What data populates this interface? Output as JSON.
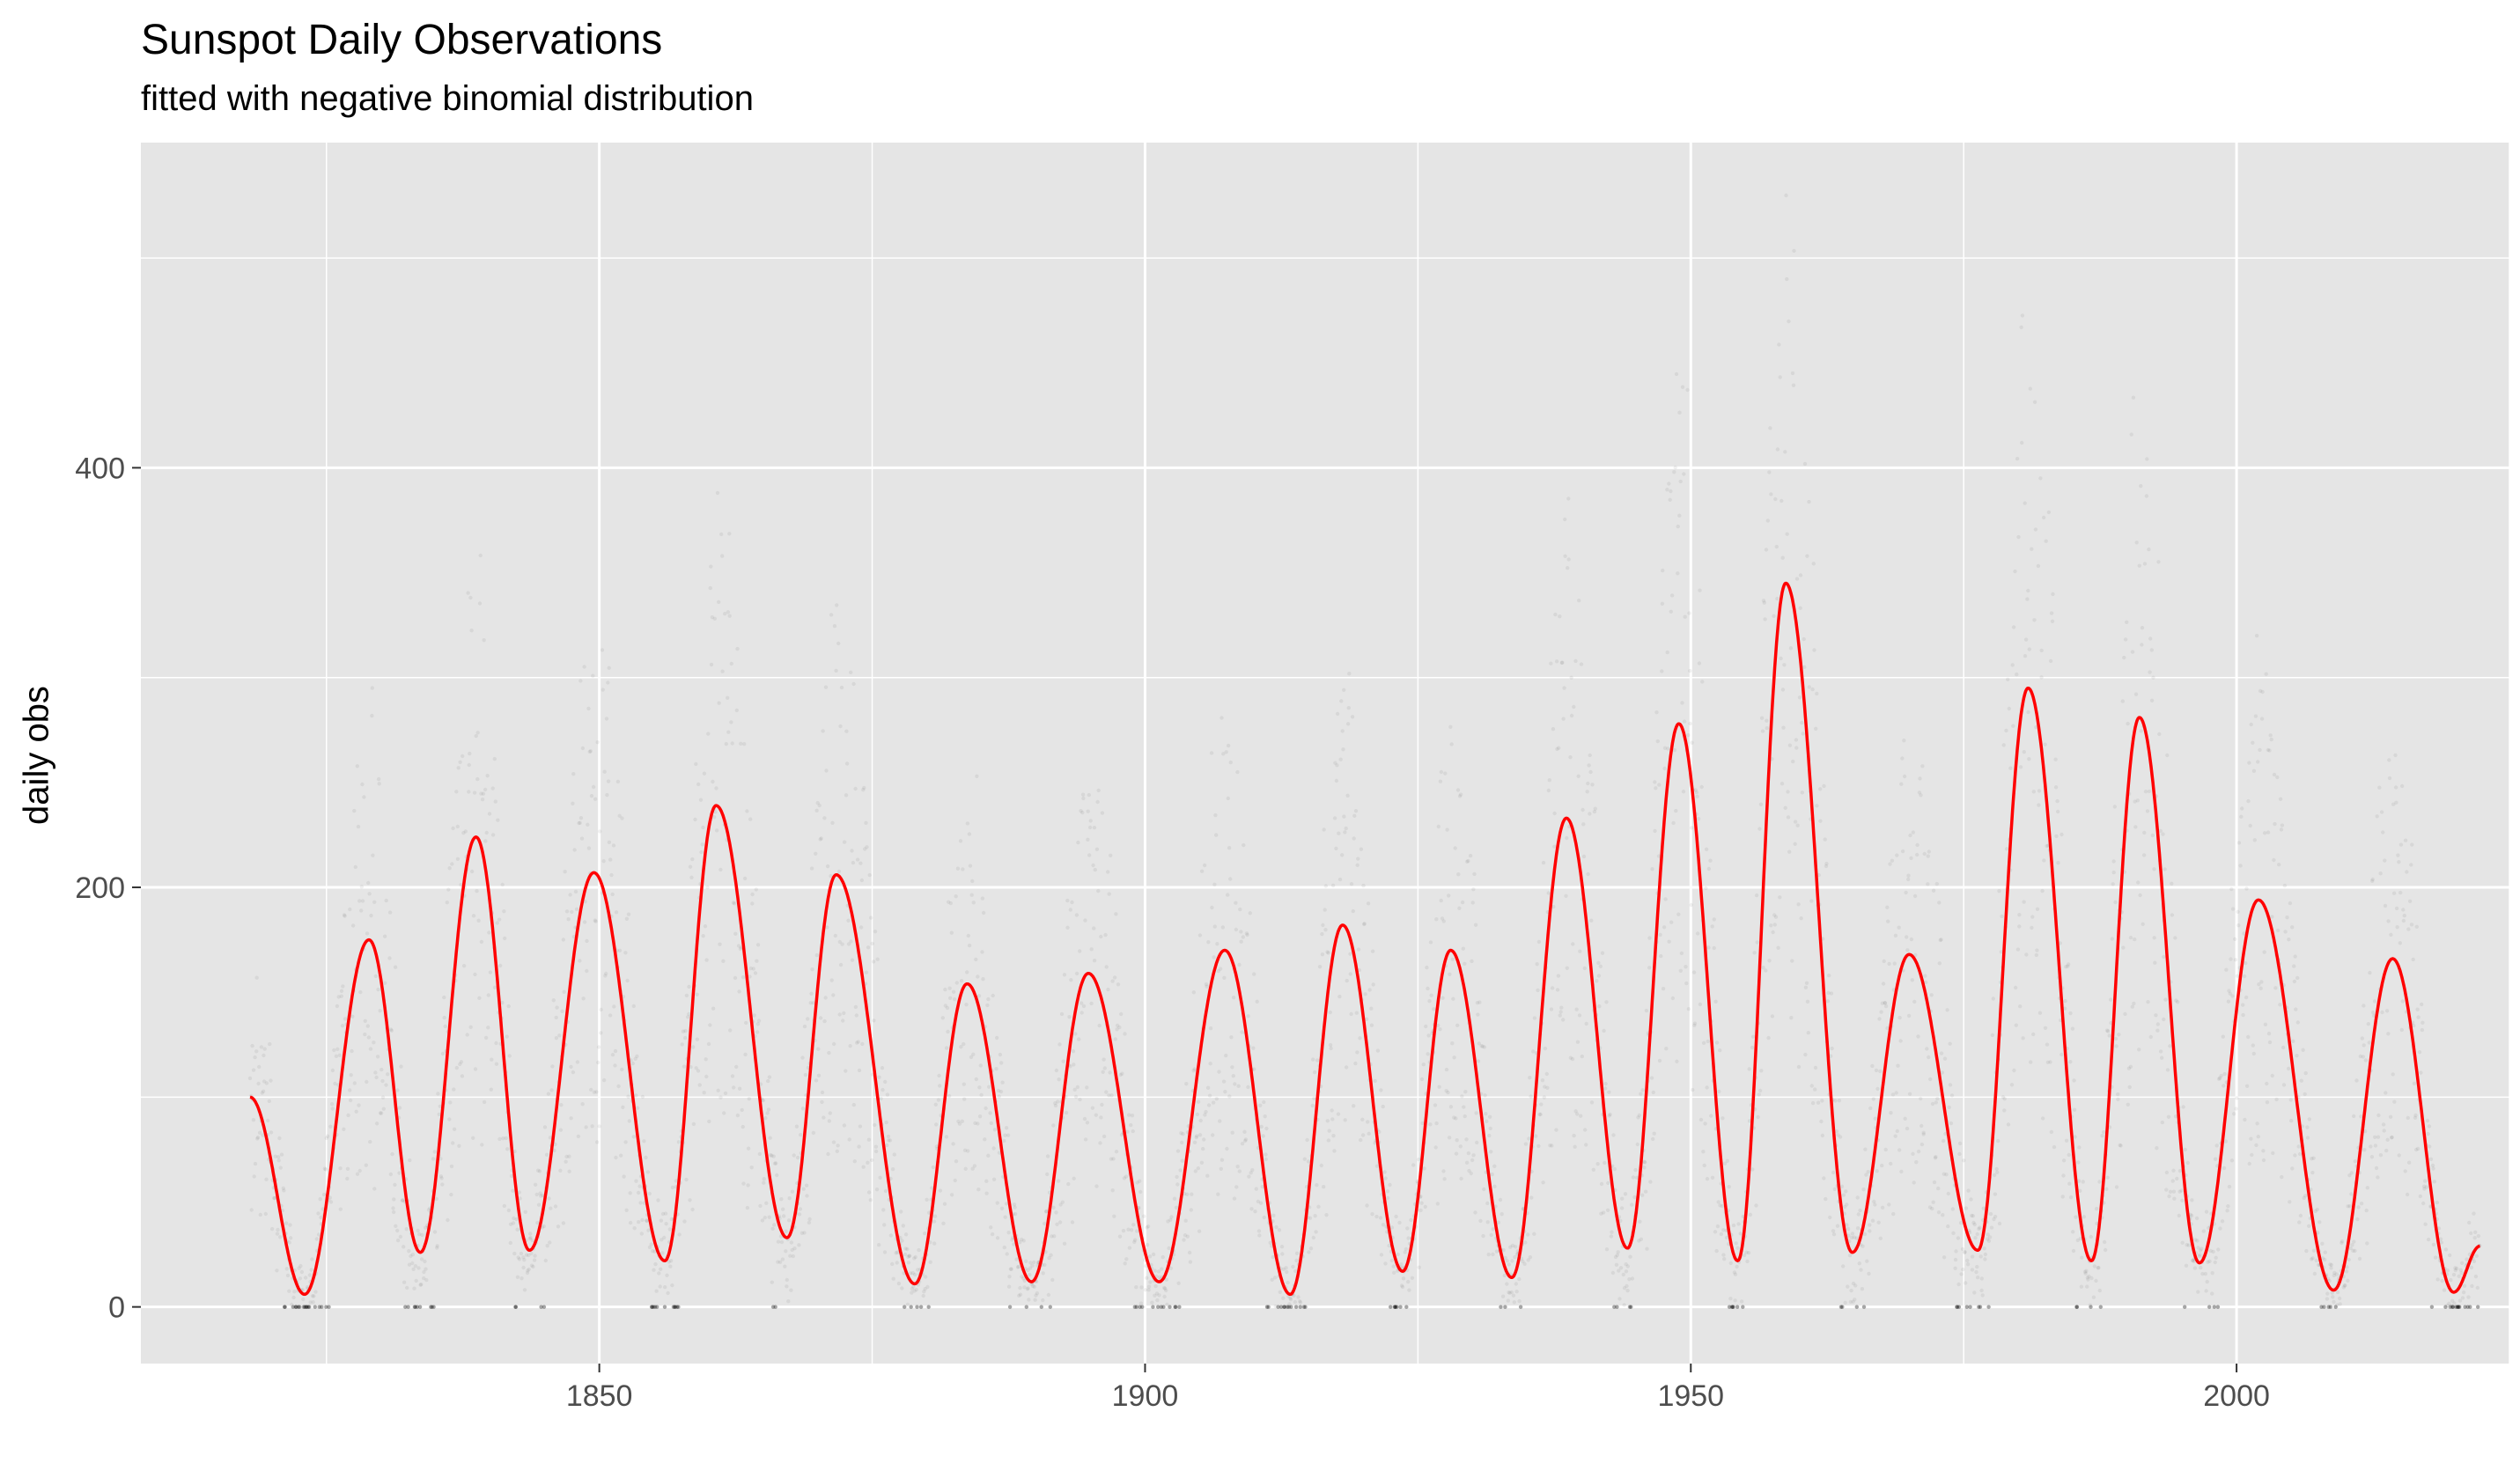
{
  "chart_data": {
    "type": "scatter",
    "title": "Sunspot Daily Observations",
    "subtitle": "fitted with negative binomial distribution",
    "xlabel": "",
    "ylabel": "daily obs",
    "xlim": [
      1808,
      2025
    ],
    "ylim": [
      -27,
      555
    ],
    "x_ticks": [
      1850,
      1900,
      1950,
      2000
    ],
    "x_tick_labels": [
      "1850",
      "1900",
      "1950",
      "2000"
    ],
    "y_ticks": [
      0,
      200,
      400
    ],
    "y_tick_labels": [
      "0",
      "200",
      "400"
    ],
    "grid": true,
    "background": "#e5e5e5",
    "grid_color": "#ffffff",
    "point_color": "#000000",
    "fit_color": "#ff0000",
    "fit_start": {
      "x": 1818.0,
      "y": 100
    },
    "fit_end": {
      "x": 2022.3,
      "y": 29
    },
    "series": [
      {
        "name": "",
        "kind": "fit-peaks",
        "peaks": [
          {
            "x": 1828.9,
            "y": 175
          },
          {
            "x": 1838.7,
            "y": 224
          },
          {
            "x": 1849.5,
            "y": 207
          },
          {
            "x": 1860.7,
            "y": 239
          },
          {
            "x": 1871.7,
            "y": 206
          },
          {
            "x": 1883.7,
            "y": 154
          },
          {
            "x": 1894.8,
            "y": 159
          },
          {
            "x": 1907.3,
            "y": 170
          },
          {
            "x": 1918.1,
            "y": 182
          },
          {
            "x": 1928.0,
            "y": 170
          },
          {
            "x": 1938.6,
            "y": 233
          },
          {
            "x": 1948.9,
            "y": 278
          },
          {
            "x": 1958.7,
            "y": 345
          },
          {
            "x": 1970.0,
            "y": 168
          },
          {
            "x": 1980.9,
            "y": 295
          },
          {
            "x": 1991.1,
            "y": 281
          },
          {
            "x": 2002.0,
            "y": 194
          },
          {
            "x": 2014.3,
            "y": 166
          }
        ]
      },
      {
        "name": "",
        "kind": "fit-troughs",
        "troughs": [
          {
            "x": 1823.0,
            "y": 6
          },
          {
            "x": 1833.6,
            "y": 26
          },
          {
            "x": 1843.6,
            "y": 27
          },
          {
            "x": 1856.0,
            "y": 22
          },
          {
            "x": 1867.2,
            "y": 33
          },
          {
            "x": 1878.9,
            "y": 11
          },
          {
            "x": 1889.6,
            "y": 12
          },
          {
            "x": 1901.3,
            "y": 12
          },
          {
            "x": 1913.3,
            "y": 6
          },
          {
            "x": 1923.6,
            "y": 17
          },
          {
            "x": 1933.6,
            "y": 14
          },
          {
            "x": 1944.2,
            "y": 28
          },
          {
            "x": 1954.3,
            "y": 22
          },
          {
            "x": 1964.8,
            "y": 26
          },
          {
            "x": 1976.3,
            "y": 27
          },
          {
            "x": 1986.7,
            "y": 22
          },
          {
            "x": 1996.6,
            "y": 21
          },
          {
            "x": 2008.9,
            "y": 8
          },
          {
            "x": 2019.9,
            "y": 7
          }
        ]
      }
    ]
  }
}
